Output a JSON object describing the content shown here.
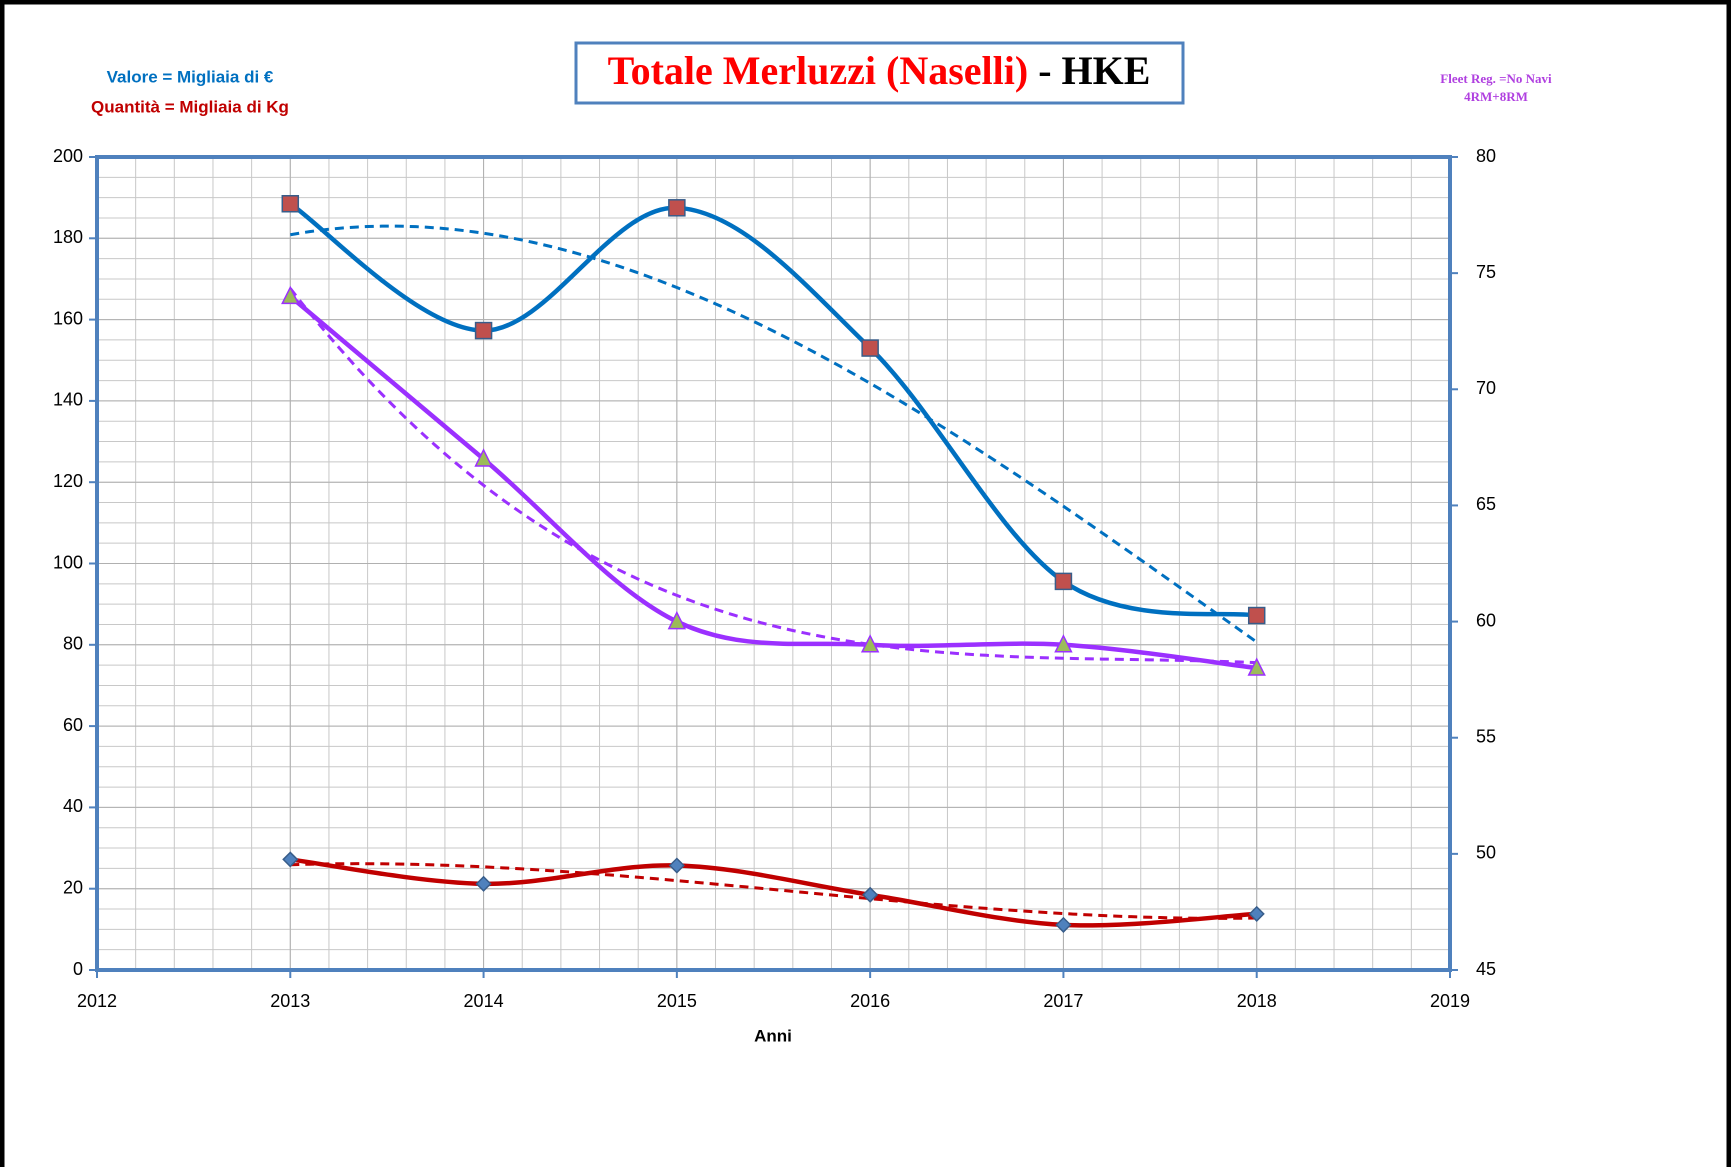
{
  "chart_data": {
    "type": "line",
    "title": "Totale Merluzzi (Naselli)",
    "title_suffix": "- HKE",
    "note_value": "Valore = Migliaia di €",
    "note_quantity": "Quantità = Migliaia di Kg",
    "fleet_note": [
      "Fleet Reg. =No Navi",
      "4RM+8RM"
    ],
    "xlabel": "Anni",
    "x": [
      2013,
      2014,
      2015,
      2016,
      2017,
      2018
    ],
    "xlim": [
      2012,
      2019
    ],
    "xticks": [
      2012,
      2013,
      2014,
      2015,
      2016,
      2017,
      2018,
      2019
    ],
    "ylim": [
      0,
      200
    ],
    "yticks": [
      0,
      20,
      40,
      60,
      80,
      100,
      120,
      140,
      160,
      180,
      200
    ],
    "y2lim": [
      45,
      80
    ],
    "y2ticks": [
      45,
      50,
      55,
      60,
      65,
      70,
      75,
      80
    ],
    "grid": true,
    "series": [
      {
        "color": "#0070c0",
        "marker": "square",
        "marker_color": "#c0504d",
        "values": [
          188.5,
          157.3,
          187.5,
          153,
          95.6,
          87.2
        ]
      },
      {
        "color": "#c00000",
        "marker": "diamond",
        "marker_color": "#4f81bd",
        "values": [
          27.2,
          21.2,
          25.7,
          18.5,
          11.1,
          13.8
        ]
      },
      {
        "color": "#9b30ff",
        "marker": "triangle",
        "marker_color": "#9bbb59",
        "axis": "y2",
        "values": [
          74,
          67,
          60,
          59,
          59,
          58
        ]
      }
    ]
  }
}
